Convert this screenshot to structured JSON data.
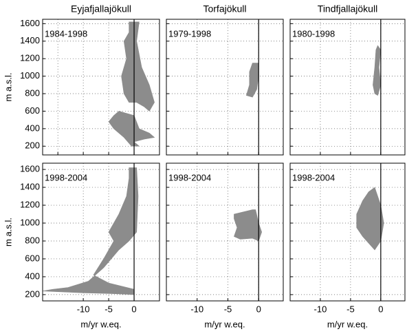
{
  "chart_data": [
    {
      "type": "area",
      "title": "Eyjafjallajökull",
      "label": "1984-1998",
      "ylabel": "m a.s.l.",
      "color": "#8c8c8c",
      "grid": true,
      "vline": 0,
      "tick_labels": {
        "x": false,
        "y": true
      },
      "xlim": [
        -18,
        5
      ],
      "ylim": [
        100,
        1650
      ],
      "xticks": [
        -15,
        -10,
        -5,
        0
      ],
      "yticks": [
        200,
        400,
        600,
        800,
        1000,
        1200,
        1400,
        1600
      ],
      "regions": [
        {
          "x": [
            -1,
            1,
            0.5,
            1.5,
            3,
            4,
            3,
            2,
            0.5,
            -1,
            -2,
            -2.5,
            -1.5,
            -2,
            -1
          ],
          "y": [
            1620,
            1620,
            1400,
            1100,
            900,
            700,
            600,
            650,
            700,
            700,
            800,
            1000,
            1200,
            1400,
            1500
          ]
        },
        {
          "x": [
            -3,
            0,
            1,
            3,
            4,
            2,
            0,
            1,
            -0.5,
            -2,
            -4,
            -5,
            -4
          ],
          "y": [
            600,
            550,
            400,
            350,
            300,
            280,
            250,
            200,
            200,
            300,
            400,
            480,
            550
          ]
        }
      ]
    },
    {
      "type": "area",
      "title": "Torfajökull",
      "label": "1979-1998",
      "color": "#8c8c8c",
      "grid": true,
      "vline": 0,
      "tick_labels": {
        "x": false,
        "y": false
      },
      "xlim": [
        -15,
        4
      ],
      "ylim": [
        100,
        1650
      ],
      "xticks": [
        -15,
        -10,
        -5,
        0
      ],
      "yticks": [
        200,
        400,
        600,
        800,
        1000,
        1200,
        1400,
        1600
      ],
      "regions": [
        {
          "x": [
            -1,
            0,
            0,
            -0.3,
            -1,
            -2,
            -1.5,
            -1.5
          ],
          "y": [
            1150,
            1150,
            1000,
            850,
            760,
            780,
            900,
            1050
          ]
        }
      ]
    },
    {
      "type": "area",
      "title": "Tindfjallajökull",
      "label": "1980-1998",
      "color": "#8c8c8c",
      "grid": true,
      "vline": 0,
      "tick_labels": {
        "x": false,
        "y": false
      },
      "xlim": [
        -15,
        4
      ],
      "ylim": [
        100,
        1650
      ],
      "xticks": [
        -15,
        -10,
        -5,
        0
      ],
      "yticks": [
        200,
        400,
        600,
        800,
        1000,
        1200,
        1400,
        1600
      ],
      "regions": [
        {
          "x": [
            -0.5,
            0,
            -0.3,
            0,
            -0.5,
            -1,
            -1.3,
            -1,
            -0.8
          ],
          "y": [
            1350,
            1300,
            1100,
            900,
            780,
            800,
            900,
            1100,
            1300
          ]
        }
      ]
    },
    {
      "type": "area",
      "label": "1998-2004",
      "ylabel": "m a.s.l.",
      "xlabel": "m/yr w.eq.",
      "color": "#8c8c8c",
      "grid": true,
      "vline": 0,
      "tick_labels": {
        "x": true,
        "y": true
      },
      "xlim": [
        -18,
        5
      ],
      "ylim": [
        130,
        1670
      ],
      "xticks": [
        -10,
        -5,
        0
      ],
      "yticks": [
        200,
        400,
        600,
        800,
        1000,
        1200,
        1400,
        1600
      ],
      "regions": [
        {
          "x": [
            -1,
            0.5,
            0.8,
            0.5,
            -1,
            -3,
            -6,
            -9,
            -13,
            -16,
            -18,
            -10,
            -4,
            0,
            0,
            -5,
            -8,
            -6,
            -4,
            -5,
            -3,
            -1.5,
            -1
          ],
          "y": [
            1620,
            1620,
            1300,
            900,
            800,
            700,
            500,
            350,
            280,
            260,
            240,
            220,
            210,
            200,
            260,
            330,
            420,
            600,
            800,
            900,
            1100,
            1300,
            1500
          ]
        }
      ]
    },
    {
      "type": "area",
      "label": "1998-2004",
      "xlabel": "m/yr w.eq.",
      "color": "#8c8c8c",
      "grid": true,
      "vline": 0,
      "tick_labels": {
        "x": true,
        "y": false
      },
      "xlim": [
        -15,
        4
      ],
      "ylim": [
        130,
        1670
      ],
      "xticks": [
        -10,
        -5,
        0
      ],
      "yticks": [
        200,
        400,
        600,
        800,
        1000,
        1200,
        1400,
        1600
      ],
      "regions": [
        {
          "x": [
            -4,
            -1,
            -0.5,
            0,
            0.5,
            0,
            -1,
            -3,
            -4,
            -3.5,
            -4
          ],
          "y": [
            1100,
            1150,
            1150,
            1000,
            900,
            800,
            830,
            820,
            850,
            950,
            1050
          ]
        }
      ]
    },
    {
      "type": "area",
      "label": "1998-2004",
      "xlabel": "m/yr w.eq.",
      "color": "#8c8c8c",
      "grid": true,
      "vline": 0,
      "tick_labels": {
        "x": true,
        "y": false
      },
      "xlim": [
        -15,
        4
      ],
      "ylim": [
        130,
        1670
      ],
      "xticks": [
        -10,
        -5,
        0
      ],
      "yticks": [
        200,
        400,
        600,
        800,
        1000,
        1200,
        1400,
        1600
      ],
      "regions": [
        {
          "x": [
            -2,
            -1,
            0,
            0.5,
            0,
            -1,
            -3,
            -4,
            -4,
            -3
          ],
          "y": [
            1350,
            1400,
            1200,
            1000,
            800,
            700,
            850,
            950,
            1100,
            1250
          ]
        }
      ]
    }
  ]
}
